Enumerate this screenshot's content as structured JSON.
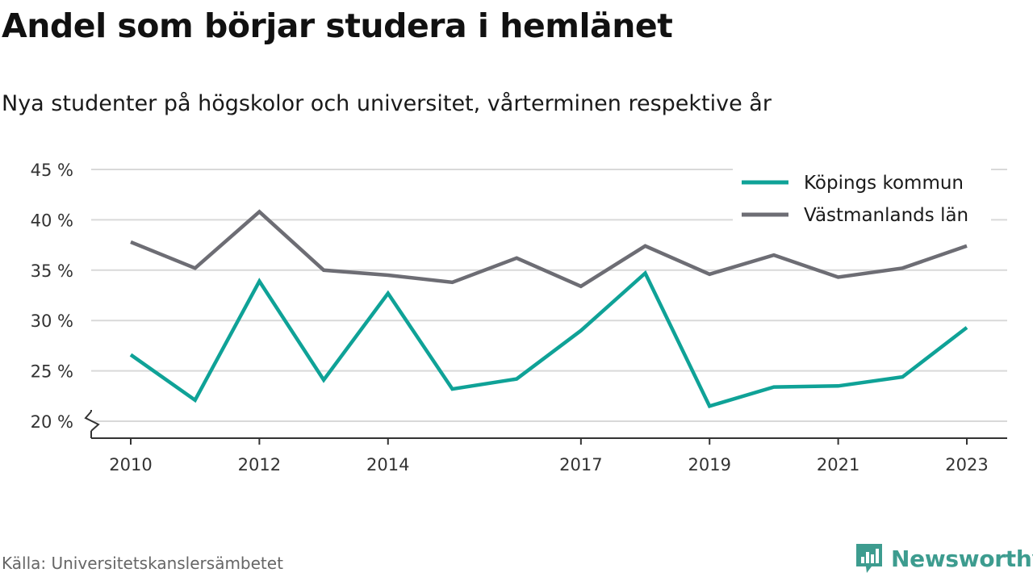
{
  "title": "Andel som börjar studera i hemlänet",
  "subtitle": "Nya studenter på högskolor och universitet, vårterminen respektive år",
  "source": "Källa: Universitetskanslersämbetet",
  "brand": {
    "name": "Newsworthy",
    "icon": "newsworthy-logo-icon",
    "color": "#3d9c8f"
  },
  "chart_data": {
    "type": "line",
    "title": "Andel som börjar studera i hemlänet",
    "subtitle": "Nya studenter på högskolor och universitet, vårterminen respektive år",
    "x": [
      2010,
      2011,
      2012,
      2013,
      2014,
      2015,
      2016,
      2017,
      2018,
      2019,
      2020,
      2021,
      2022,
      2023
    ],
    "x_ticks": [
      2010,
      2012,
      2014,
      2017,
      2019,
      2021,
      2023
    ],
    "x_tick_labels": [
      "2010",
      "2012",
      "2014",
      "2017",
      "2019",
      "2021",
      "2023"
    ],
    "y_ticks": [
      20,
      25,
      30,
      35,
      40,
      45
    ],
    "y_tick_labels": [
      "20 %",
      "25 %",
      "30 %",
      "35 %",
      "40 %",
      "45 %"
    ],
    "ylim": [
      20,
      45
    ],
    "y_axis_break": true,
    "grid": true,
    "legend_position": "top-right",
    "series": [
      {
        "name": "Köpings kommun",
        "color": "#0fa297",
        "values": [
          26.6,
          22.1,
          33.9,
          24.1,
          32.7,
          23.2,
          24.2,
          29.0,
          34.7,
          21.5,
          23.4,
          23.5,
          24.4,
          29.3
        ]
      },
      {
        "name": "Västmanlands län",
        "color": "#6d6d74",
        "values": [
          37.8,
          35.2,
          40.8,
          35.0,
          34.5,
          33.8,
          36.2,
          33.4,
          37.4,
          34.6,
          36.5,
          34.3,
          35.2,
          37.4
        ]
      }
    ]
  }
}
